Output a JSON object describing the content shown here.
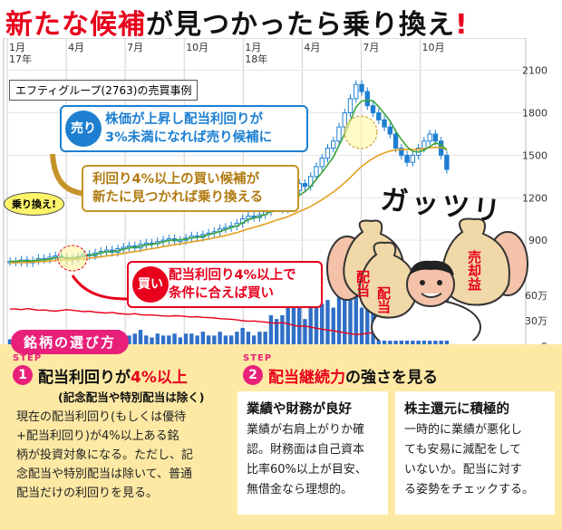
{
  "headline": {
    "part1": "新たな候補",
    "part2": "が見つかったら乗り換え",
    "part3": "!"
  },
  "chart_data": {
    "type": "candlestick",
    "title": "エフティグループ(2763)の売買事例",
    "x_ticks": [
      "1月",
      "4月",
      "7月",
      "10月",
      "1月",
      "4月",
      "7月",
      "10月"
    ],
    "year_labels": [
      "17年",
      "18年"
    ],
    "price_axis": {
      "ticks": [
        900,
        1200,
        1500,
        1800,
        2100
      ],
      "range": [
        600,
        2200
      ]
    },
    "volume_axis": {
      "labels": [
        "60万",
        "30万",
        "0"
      ],
      "ticks": [
        0,
        30,
        60
      ],
      "unit": "万"
    },
    "price_weekly": [
      750,
      745,
      760,
      740,
      755,
      770,
      765,
      780,
      790,
      775,
      760,
      770,
      785,
      800,
      790,
      810,
      820,
      830,
      815,
      840,
      850,
      860,
      845,
      870,
      880,
      875,
      890,
      900,
      910,
      895,
      900,
      915,
      930,
      920,
      940,
      950,
      960,
      980,
      990,
      1000,
      1020,
      1050,
      1070,
      1060,
      1080,
      1100,
      1130,
      1150,
      1120,
      1180,
      1250,
      1300,
      1280,
      1350,
      1420,
      1480,
      1550,
      1600,
      1700,
      1800,
      1900,
      2000,
      1950,
      1850,
      1800,
      1750,
      1700,
      1650,
      1550,
      1500,
      1450,
      1500,
      1550,
      1600,
      1650,
      1600,
      1500,
      1400
    ],
    "ma_short": [
      750,
      752,
      755,
      754,
      755,
      760,
      762,
      768,
      775,
      777,
      776,
      774,
      778,
      788,
      793,
      800,
      810,
      818,
      818,
      826,
      836,
      846,
      849,
      857,
      866,
      871,
      878,
      888,
      899,
      901,
      903,
      908,
      917,
      920,
      928,
      939,
      949,
      962,
      975,
      989,
      1002,
      1023,
      1045,
      1057,
      1068,
      1082,
      1101,
      1120,
      1127,
      1145,
      1177,
      1217,
      1243,
      1280,
      1330,
      1378,
      1433,
      1487,
      1570,
      1652,
      1745,
      1841,
      1883,
      1887,
      1885,
      1843,
      1793,
      1742,
      1670,
      1612,
      1560,
      1528,
      1523,
      1537,
      1561,
      1587,
      1575,
      1535
    ],
    "ma_long": [
      740,
      741,
      742,
      743,
      745,
      748,
      750,
      753,
      757,
      760,
      762,
      763,
      765,
      769,
      773,
      778,
      783,
      789,
      793,
      800,
      807,
      814,
      819,
      826,
      833,
      840,
      846,
      854,
      862,
      868,
      874,
      881,
      888,
      894,
      901,
      908,
      916,
      925,
      934,
      944,
      954,
      967,
      980,
      991,
      1002,
      1014,
      1028,
      1042,
      1053,
      1067,
      1084,
      1103,
      1119,
      1139,
      1162,
      1186,
      1213,
      1240,
      1272,
      1306,
      1344,
      1385,
      1421,
      1451,
      1478,
      1500,
      1517,
      1530,
      1537,
      1540,
      1540,
      1541,
      1543,
      1547,
      1553,
      1556,
      1553,
      1545
    ],
    "dividend_yield_line": "red",
    "colors": {
      "candle": "#1e7fd1",
      "ma_short": "#3aa43a",
      "ma_long": "#e3a020",
      "yield": "#e8001c",
      "volume": "#2f6fc7"
    }
  },
  "notes": {
    "sell_label": "売り",
    "sell_line1": "株価が上昇し配当利回りが",
    "sell_line2": "3%未満になれば売り候補に",
    "swap_line1": "利回り4%以上の買い候補が",
    "swap_line2": "新たに見つかれば乗り換える",
    "swap_tag": "乗り換え!",
    "buy_label": "買い",
    "buy_line1": "配当利回り4%以上で",
    "buy_line2": "条件に合えば買い"
  },
  "illustration": {
    "exclaim": "ガッツリ",
    "bag1": "配当",
    "bag2": "配当",
    "bag3": "売却益"
  },
  "panel": {
    "tab_title": "銘柄の選び方",
    "step_word": "STEP",
    "step1": {
      "num": "1",
      "head_a": "配当利回りが",
      "head_b": "4%以上",
      "sub": "(記念配当や特別配当は除く)",
      "lines": [
        "現在の配当利回り(もしくは優待",
        "+配当利回り)が4%以上ある銘",
        "柄が投資対象になる。ただし、記",
        "念配当や特別配当は除いて、普通",
        "配当だけの利回りを見る。"
      ]
    },
    "step2": {
      "num": "2",
      "head_a": "配当継続力",
      "head_b": "の強さを見る",
      "box1_title": "業績や財務が良好",
      "box1_lines": [
        "業績が右肩上がりか確",
        "認。財務面は自己資本",
        "比率60%以上が目安、",
        "無借金なら理想的。"
      ],
      "box2_title": "株主還元に積極的",
      "box2_lines": [
        "一時的に業績が悪化し",
        "ても安易に減配をして",
        "いないか。配当に対す",
        "る姿勢をチェックする。"
      ]
    }
  }
}
